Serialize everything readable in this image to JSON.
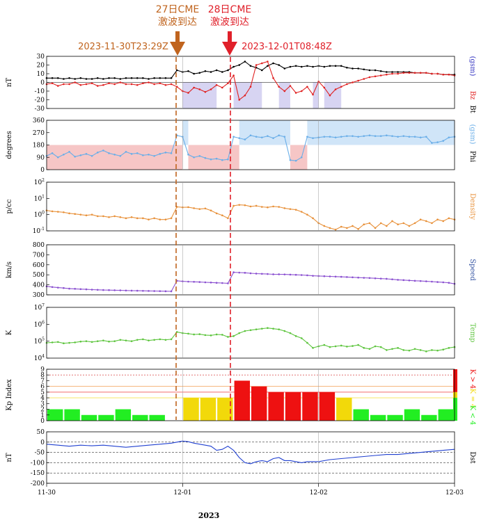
{
  "figure": {
    "year_label": "2023",
    "x_ticks": [
      "11-30",
      "12-01",
      "12-02",
      "12-03"
    ],
    "colors": {
      "bt": "#000000",
      "bz": "#e02020",
      "phi": "#6aaee8",
      "density": "#e8913a",
      "speed": "#8a4fd0",
      "temp": "#5cc43c",
      "dst": "#1f3fd0",
      "kp_low": "#22ee22",
      "kp_mid": "#f2d90a",
      "kp_high": "#ee1111",
      "cme27": "#c0641e",
      "cme28": "#e0202a"
    }
  },
  "annotations": {
    "cme27_title1": "27日CME",
    "cme27_title2": "激波到达",
    "cme27_time": "2023-11-30T23:29Z",
    "cme28_title1": "28日CME",
    "cme28_title2": "激波到达",
    "cme28_time": "2023-12-01T08:48Z"
  },
  "chart_data": [
    {
      "type": "line",
      "panel": "imf",
      "ylabel": "nT",
      "right_labels": [
        "Bt",
        "Bz",
        "(gsm)"
      ],
      "ylim": [
        -30,
        30
      ],
      "y_ticks": [
        30,
        20,
        10,
        0,
        -10,
        -20,
        -30
      ],
      "x": [
        0,
        1,
        2,
        3,
        4,
        5,
        6,
        7,
        8,
        9,
        10,
        11,
        12,
        13,
        14,
        15,
        16,
        17,
        18,
        19,
        20,
        21,
        22,
        23,
        24,
        25,
        26,
        27,
        28,
        29,
        30,
        31,
        32,
        33,
        34,
        35,
        36,
        37,
        38,
        39,
        40,
        41,
        42,
        43,
        44,
        45,
        46,
        47,
        48,
        49,
        50,
        51,
        52,
        53,
        54,
        55,
        56,
        57,
        58,
        59,
        60,
        61,
        62,
        63,
        64,
        65,
        66,
        67,
        68,
        69,
        70,
        71,
        72
      ],
      "series": [
        {
          "name": "Bt",
          "values": [
            5,
            5,
            5,
            4,
            5,
            4,
            5,
            4,
            4,
            5,
            4,
            5,
            5,
            4,
            5,
            5,
            5,
            5,
            4,
            5,
            5,
            5,
            5,
            14,
            12,
            13,
            10,
            11,
            13,
            12,
            14,
            12,
            14,
            18,
            20,
            24,
            19,
            17,
            14,
            19,
            22,
            20,
            16,
            18,
            19,
            18,
            19,
            18,
            19,
            18,
            19,
            19,
            19,
            17,
            16,
            16,
            15,
            14,
            14,
            13,
            12,
            12,
            12,
            12,
            12,
            11,
            11,
            11,
            10,
            10,
            9,
            9,
            9
          ]
        },
        {
          "name": "Bz",
          "values": [
            -2,
            -1,
            -4,
            -2,
            -2,
            0,
            -3,
            -2,
            -1,
            -4,
            -3,
            -1,
            -2,
            0,
            -2,
            -2,
            -3,
            -1,
            0,
            -2,
            -1,
            -3,
            -2,
            -5,
            -10,
            -12,
            -6,
            -8,
            -11,
            -8,
            -3,
            -6,
            -1,
            8,
            -20,
            -15,
            -5,
            20,
            22,
            24,
            5,
            -5,
            -10,
            -4,
            -12,
            -10,
            -5,
            -14,
            1,
            -6,
            -15,
            -8,
            -5,
            -2,
            0,
            2,
            4,
            6,
            7,
            8,
            9,
            10,
            10,
            11,
            11,
            11,
            11,
            11,
            10,
            10,
            9,
            9,
            8
          ]
        }
      ],
      "shaded_intervals_bz_negative": [
        [
          24,
          30
        ],
        [
          33,
          38
        ],
        [
          41,
          43
        ],
        [
          47,
          48
        ],
        [
          49,
          52
        ]
      ]
    },
    {
      "type": "line",
      "panel": "phi",
      "ylabel": "degrees",
      "right_labels": [
        "Phi",
        "(gsm)"
      ],
      "ylim": [
        0,
        360
      ],
      "y_ticks": [
        360,
        270,
        180,
        90,
        0
      ],
      "x": [
        0,
        1,
        2,
        3,
        4,
        5,
        6,
        7,
        8,
        9,
        10,
        11,
        12,
        13,
        14,
        15,
        16,
        17,
        18,
        19,
        20,
        21,
        22,
        23,
        24,
        25,
        26,
        27,
        28,
        29,
        30,
        31,
        32,
        33,
        34,
        35,
        36,
        37,
        38,
        39,
        40,
        41,
        42,
        43,
        44,
        45,
        46,
        47,
        48,
        49,
        50,
        51,
        52,
        53,
        54,
        55,
        56,
        57,
        58,
        59,
        60,
        61,
        62,
        63,
        64,
        65,
        66,
        67,
        68,
        69,
        70,
        71,
        72
      ],
      "values": [
        100,
        120,
        90,
        110,
        130,
        95,
        105,
        115,
        100,
        125,
        140,
        120,
        110,
        100,
        130,
        115,
        120,
        105,
        110,
        100,
        115,
        125,
        120,
        250,
        240,
        110,
        90,
        100,
        85,
        75,
        80,
        70,
        75,
        240,
        230,
        220,
        250,
        240,
        235,
        245,
        230,
        250,
        240,
        70,
        65,
        90,
        240,
        230,
        235,
        240,
        240,
        235,
        240,
        245,
        245,
        240,
        245,
        250,
        245,
        245,
        250,
        245,
        240,
        245,
        240,
        240,
        235,
        240,
        195,
        200,
        210,
        235,
        240
      ],
      "pink_bands": [
        [
          0,
          24
        ],
        [
          25,
          34
        ],
        [
          43,
          46
        ]
      ],
      "blue_bands": [
        [
          24,
          25
        ],
        [
          34,
          43
        ],
        [
          46,
          72
        ]
      ]
    },
    {
      "type": "line",
      "panel": "density",
      "ylabel": "p/cc",
      "right_labels": [
        "Density"
      ],
      "scale": "log",
      "ylim": [
        0.1,
        100
      ],
      "y_ticks": [
        "10^2",
        "10^1",
        "10^0",
        "10^-1"
      ],
      "x": [
        0,
        1,
        2,
        3,
        4,
        5,
        6,
        7,
        8,
        9,
        10,
        11,
        12,
        13,
        14,
        15,
        16,
        17,
        18,
        19,
        20,
        21,
        22,
        23,
        24,
        25,
        26,
        27,
        28,
        29,
        30,
        31,
        32,
        33,
        34,
        35,
        36,
        37,
        38,
        39,
        40,
        41,
        42,
        43,
        44,
        45,
        46,
        47,
        48,
        49,
        50,
        51,
        52,
        53,
        54,
        55,
        56,
        57,
        58,
        59,
        60,
        61,
        62,
        63,
        64,
        65,
        66,
        67,
        68,
        69,
        70,
        71,
        72
      ],
      "values": [
        1.8,
        1.6,
        1.5,
        1.4,
        1.2,
        1.1,
        1.0,
        0.9,
        1.0,
        0.8,
        0.8,
        0.7,
        0.8,
        0.7,
        0.6,
        0.7,
        0.6,
        0.6,
        0.5,
        0.6,
        0.5,
        0.5,
        0.6,
        3.0,
        2.8,
        2.9,
        2.5,
        2.2,
        2.4,
        1.8,
        1.2,
        0.9,
        0.6,
        3.5,
        4.0,
        3.8,
        3.2,
        3.5,
        3.0,
        2.8,
        3.2,
        3.0,
        2.5,
        2.2,
        2.0,
        1.5,
        1.0,
        0.6,
        0.3,
        0.2,
        0.15,
        0.12,
        0.18,
        0.15,
        0.2,
        0.13,
        0.25,
        0.3,
        0.15,
        0.3,
        0.2,
        0.4,
        0.25,
        0.3,
        0.2,
        0.3,
        0.5,
        0.4,
        0.3,
        0.5,
        0.4,
        0.6,
        0.5
      ]
    },
    {
      "type": "line",
      "panel": "speed",
      "ylabel": "km/s",
      "right_labels": [
        "Speed"
      ],
      "ylim": [
        300,
        800
      ],
      "y_ticks": [
        800,
        700,
        600,
        500,
        400,
        300
      ],
      "x": [
        0,
        1,
        2,
        3,
        4,
        5,
        6,
        7,
        8,
        9,
        10,
        11,
        12,
        13,
        14,
        15,
        16,
        17,
        18,
        19,
        20,
        21,
        22,
        23,
        24,
        25,
        26,
        27,
        28,
        29,
        30,
        31,
        32,
        33,
        34,
        35,
        36,
        37,
        38,
        39,
        40,
        41,
        42,
        43,
        44,
        45,
        46,
        47,
        48,
        49,
        50,
        51,
        52,
        53,
        54,
        55,
        56,
        57,
        58,
        59,
        60,
        61,
        62,
        63,
        64,
        65,
        66,
        67,
        68,
        69,
        70,
        71,
        72
      ],
      "values": [
        385,
        378,
        372,
        368,
        362,
        360,
        357,
        355,
        352,
        350,
        348,
        347,
        346,
        345,
        343,
        342,
        341,
        340,
        339,
        338,
        337,
        336,
        335,
        440,
        435,
        432,
        430,
        428,
        425,
        423,
        420,
        418,
        415,
        525,
        522,
        520,
        515,
        512,
        510,
        508,
        505,
        505,
        504,
        502,
        500,
        498,
        495,
        490,
        488,
        486,
        484,
        482,
        480,
        478,
        475,
        472,
        470,
        468,
        465,
        462,
        460,
        455,
        450,
        447,
        444,
        440,
        438,
        435,
        432,
        428,
        425,
        420,
        410
      ]
    },
    {
      "type": "line",
      "panel": "temperature",
      "ylabel": "K",
      "right_labels": [
        "Temp"
      ],
      "scale": "log",
      "ylim": [
        10000,
        10000000
      ],
      "y_ticks": [
        "10^7",
        "10^6",
        "10^5",
        "10^4"
      ],
      "x": [
        0,
        1,
        2,
        3,
        4,
        5,
        6,
        7,
        8,
        9,
        10,
        11,
        12,
        13,
        14,
        15,
        16,
        17,
        18,
        19,
        20,
        21,
        22,
        23,
        24,
        25,
        26,
        27,
        28,
        29,
        30,
        31,
        32,
        33,
        34,
        35,
        36,
        37,
        38,
        39,
        40,
        41,
        42,
        43,
        44,
        45,
        46,
        47,
        48,
        49,
        50,
        51,
        52,
        53,
        54,
        55,
        56,
        57,
        58,
        59,
        60,
        61,
        62,
        63,
        64,
        65,
        66,
        67,
        68,
        69,
        70,
        71,
        72
      ],
      "values": [
        80000,
        85000,
        90000,
        75000,
        80000,
        85000,
        95000,
        100000,
        90000,
        100000,
        110000,
        95000,
        100000,
        120000,
        110000,
        100000,
        120000,
        130000,
        110000,
        120000,
        130000,
        120000,
        130000,
        350000,
        300000,
        280000,
        250000,
        260000,
        230000,
        220000,
        250000,
        240000,
        180000,
        200000,
        300000,
        400000,
        450000,
        500000,
        550000,
        600000,
        550000,
        500000,
        400000,
        300000,
        200000,
        150000,
        80000,
        40000,
        50000,
        60000,
        45000,
        50000,
        55000,
        48000,
        52000,
        60000,
        40000,
        35000,
        50000,
        45000,
        30000,
        35000,
        40000,
        30000,
        28000,
        35000,
        30000,
        25000,
        30000,
        28000,
        32000,
        40000,
        45000
      ]
    },
    {
      "type": "bar",
      "panel": "kp",
      "ylabel": "Kp Index",
      "right_labels": [
        "K < 4",
        "K = 4",
        "K > 4"
      ],
      "ylim": [
        0,
        9
      ],
      "y_ticks": [
        9,
        8,
        7,
        6,
        5,
        4,
        3,
        2,
        1,
        0
      ],
      "x_start": [
        0,
        3,
        6,
        9,
        12,
        15,
        18,
        24,
        27,
        30,
        33,
        36,
        39,
        42,
        45,
        48,
        51,
        54,
        57,
        60,
        63,
        66,
        69
      ],
      "values": [
        2,
        2,
        1,
        1,
        2,
        1,
        1,
        4,
        4,
        4,
        7,
        6,
        5,
        5,
        5,
        5,
        4,
        2,
        1,
        1,
        2,
        1,
        2
      ]
    },
    {
      "type": "line",
      "panel": "dst",
      "ylabel": "nT",
      "right_labels": [
        "Dst"
      ],
      "ylim": [
        -200,
        50
      ],
      "y_ticks": [
        50,
        0,
        -50,
        -100,
        -150,
        -200
      ],
      "x": [
        0,
        2,
        4,
        6,
        8,
        10,
        12,
        14,
        16,
        18,
        20,
        22,
        23,
        24,
        25,
        26,
        27,
        28,
        29,
        30,
        31,
        32,
        33,
        34,
        35,
        36,
        37,
        38,
        39,
        40,
        41,
        42,
        43,
        44,
        45,
        46,
        48,
        50,
        52,
        54,
        56,
        58,
        60,
        62,
        64,
        66,
        68,
        70,
        72
      ],
      "values": [
        -10,
        -15,
        -20,
        -15,
        -18,
        -15,
        -20,
        -25,
        -20,
        -15,
        -10,
        -5,
        0,
        5,
        2,
        -5,
        -10,
        -15,
        -20,
        -40,
        -35,
        -20,
        -40,
        -75,
        -100,
        -105,
        -95,
        -90,
        -95,
        -80,
        -75,
        -90,
        -90,
        -95,
        -100,
        -95,
        -95,
        -85,
        -80,
        -75,
        -70,
        -65,
        -60,
        -60,
        -55,
        -50,
        -45,
        -40,
        -35
      ]
    }
  ]
}
